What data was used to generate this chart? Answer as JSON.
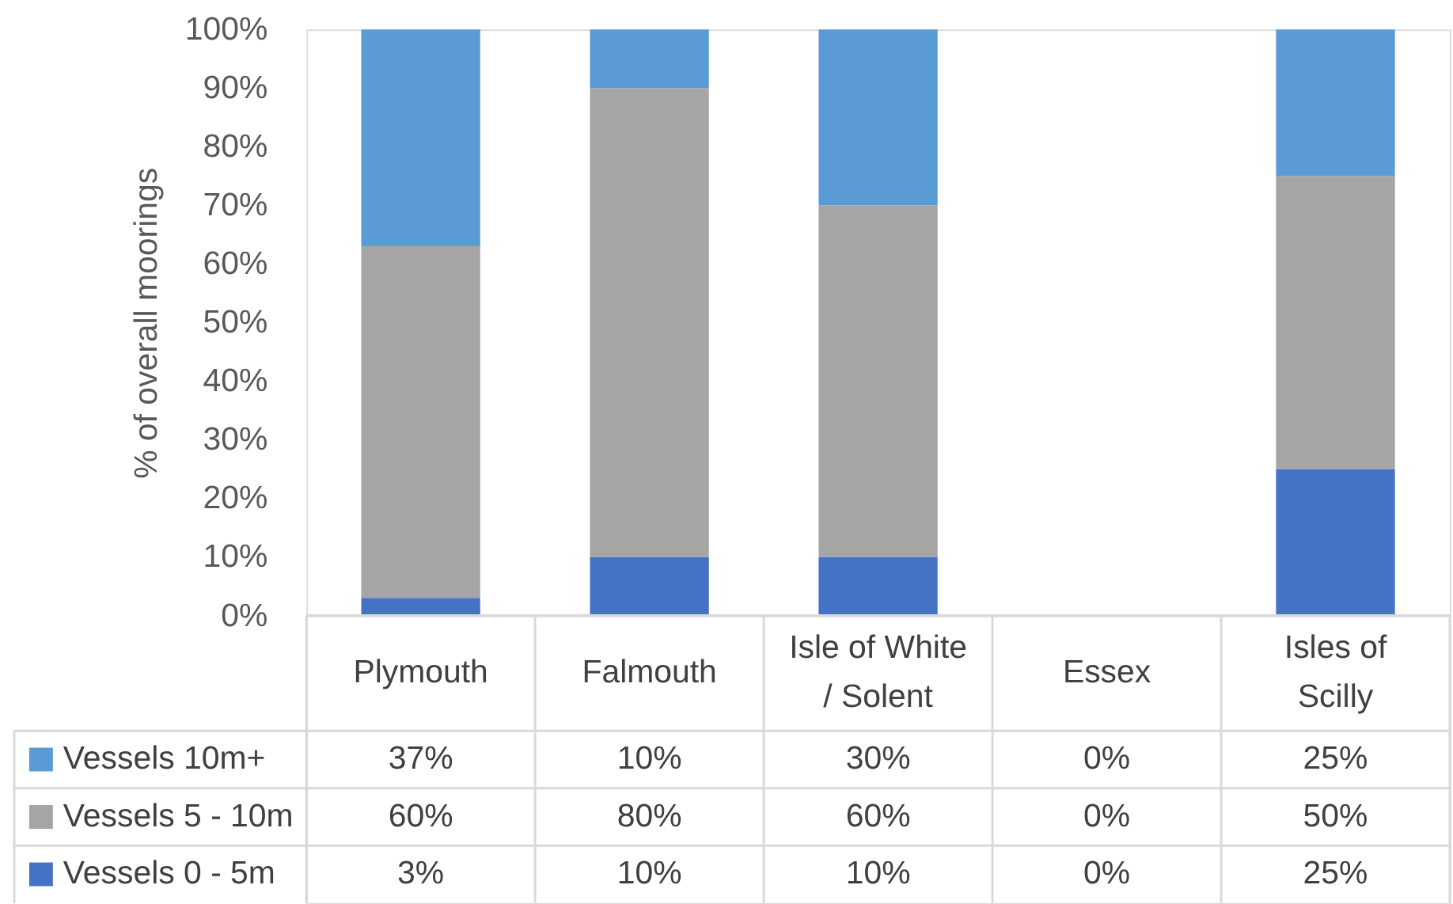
{
  "chart_data": {
    "type": "bar",
    "stacked": true,
    "ylabel": "% of overall moorings",
    "categories": [
      "Plymouth",
      "Falmouth",
      "Isle of White / Solent",
      "Essex",
      "Isles of Scilly"
    ],
    "series": [
      {
        "name": "Vessels 0 - 5m",
        "color": "#4472c4",
        "values": [
          3,
          10,
          10,
          0,
          25
        ],
        "value_labels": [
          "3%",
          "10%",
          "10%",
          "0%",
          "25%"
        ]
      },
      {
        "name": "Vessels 5 - 10m",
        "color": "#a5a5a5",
        "values": [
          60,
          80,
          60,
          0,
          50
        ],
        "value_labels": [
          "60%",
          "80%",
          "60%",
          "0%",
          "50%"
        ]
      },
      {
        "name": "Vessels 10m+",
        "color": "#5b9bd5",
        "values": [
          37,
          10,
          30,
          0,
          25
        ],
        "value_labels": [
          "37%",
          "10%",
          "30%",
          "0%",
          "25%"
        ]
      }
    ],
    "ylim": [
      0,
      100
    ],
    "yticks": [
      {
        "value": 0,
        "label": "0%"
      },
      {
        "value": 10,
        "label": "10%"
      },
      {
        "value": 20,
        "label": "20%"
      },
      {
        "value": 30,
        "label": "30%"
      },
      {
        "value": 40,
        "label": "40%"
      },
      {
        "value": 50,
        "label": "50%"
      },
      {
        "value": 60,
        "label": "60%"
      },
      {
        "value": 70,
        "label": "70%"
      },
      {
        "value": 80,
        "label": "80%"
      },
      {
        "value": 90,
        "label": "90%"
      },
      {
        "value": 100,
        "label": "100%"
      }
    ],
    "grid": false,
    "legend": "bottom"
  }
}
